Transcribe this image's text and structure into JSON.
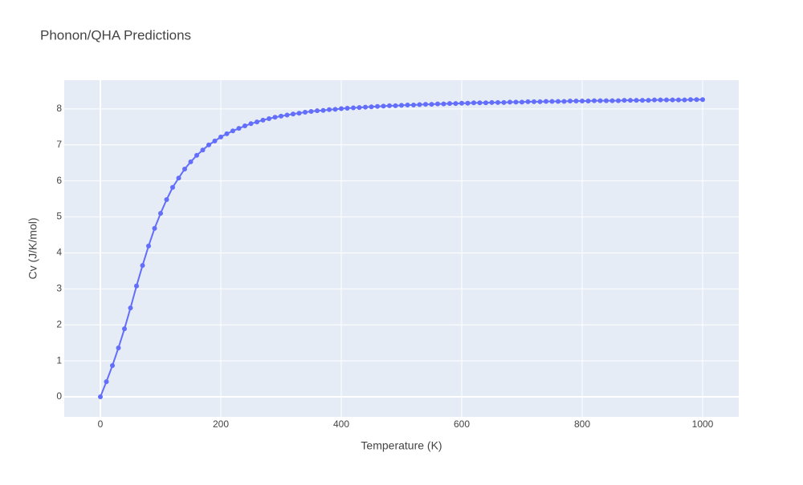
{
  "chart_data": {
    "type": "line",
    "title": "Phonon/QHA Predictions",
    "x_label": "Temperature (K)",
    "y_label": "Cv (J/K/mol)",
    "x": [
      0,
      10,
      20,
      30,
      40,
      50,
      60,
      70,
      80,
      90,
      100,
      110,
      120,
      130,
      140,
      150,
      160,
      170,
      180,
      190,
      200,
      210,
      220,
      230,
      240,
      250,
      260,
      270,
      280,
      290,
      300,
      310,
      320,
      330,
      340,
      350,
      360,
      370,
      380,
      390,
      400,
      410,
      420,
      430,
      440,
      450,
      460,
      470,
      480,
      490,
      500,
      510,
      520,
      530,
      540,
      550,
      560,
      570,
      580,
      590,
      600,
      610,
      620,
      630,
      640,
      650,
      660,
      670,
      680,
      690,
      700,
      710,
      720,
      730,
      740,
      750,
      760,
      770,
      780,
      790,
      800,
      810,
      820,
      830,
      840,
      850,
      860,
      870,
      880,
      890,
      900,
      910,
      920,
      930,
      940,
      950,
      960,
      970,
      980,
      990,
      1000
    ],
    "series": [
      {
        "name": "Cv",
        "color": "#636efa",
        "values": [
          0,
          0.42,
          0.87,
          1.36,
          1.89,
          2.47,
          3.08,
          3.65,
          4.19,
          4.68,
          5.1,
          5.48,
          5.82,
          6.08,
          6.33,
          6.53,
          6.71,
          6.86,
          7.0,
          7.11,
          7.22,
          7.31,
          7.39,
          7.46,
          7.53,
          7.59,
          7.64,
          7.69,
          7.73,
          7.77,
          7.8,
          7.83,
          7.86,
          7.88,
          7.91,
          7.93,
          7.95,
          7.96,
          7.98,
          7.99,
          8.01,
          8.02,
          8.03,
          8.04,
          8.05,
          8.06,
          8.07,
          8.08,
          8.09,
          8.09,
          8.1,
          8.11,
          8.11,
          8.12,
          8.13,
          8.13,
          8.14,
          8.14,
          8.15,
          8.15,
          8.16,
          8.16,
          8.17,
          8.17,
          8.17,
          8.18,
          8.18,
          8.18,
          8.19,
          8.19,
          8.19,
          8.2,
          8.2,
          8.2,
          8.21,
          8.21,
          8.21,
          8.21,
          8.22,
          8.22,
          8.22,
          8.22,
          8.23,
          8.23,
          8.23,
          8.23,
          8.23,
          8.24,
          8.24,
          8.24,
          8.24,
          8.24,
          8.25,
          8.25,
          8.25,
          8.25,
          8.25,
          8.25,
          8.26,
          8.26,
          8.26
        ]
      }
    ],
    "xlim": [
      -60,
      1060
    ],
    "ylim": [
      -0.557,
      8.8
    ],
    "xticks": [
      0,
      200,
      400,
      600,
      800,
      1000
    ],
    "yticks": [
      0,
      1,
      2,
      3,
      4,
      5,
      6,
      7,
      8
    ],
    "grid": true,
    "background": "#e5ecf6"
  }
}
